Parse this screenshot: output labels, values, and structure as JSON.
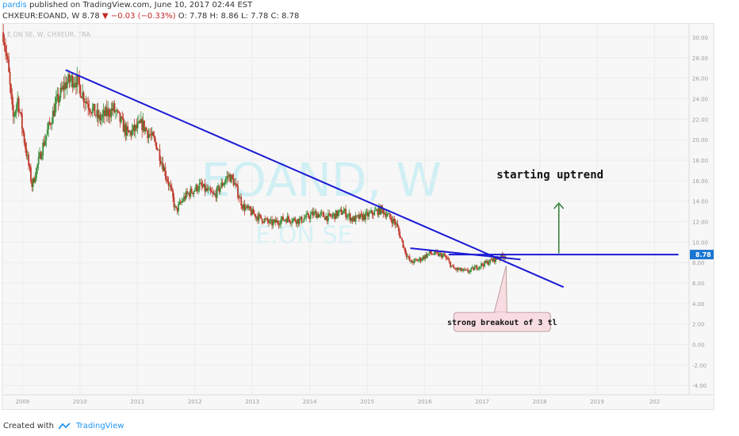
{
  "header": {
    "user": "pardis",
    "published_text": "published on TradingView.com, June 10, 2017 02:44 EST",
    "symbol": "CHXEUR:EOAND, W",
    "last": "8.78",
    "change": "−0.03 (−0.33%)",
    "ohlc": "O: 7.78 H: 8.86 L: 7.78 C: 8.78"
  },
  "footer": {
    "created_with": "Created with",
    "brand": "TradingView"
  },
  "chart_data": {
    "type": "candlestick",
    "watermark": "EOAND, W",
    "watermark_sub": "E.ON SE",
    "legend_line": "E.ON SE, W, CHXEUR, TRA",
    "x_ticks": [
      "2009",
      "2010",
      "2011",
      "2012",
      "2013",
      "2014",
      "2015",
      "2016",
      "2017",
      "2018",
      "2019",
      "202"
    ],
    "y_ticks": [
      "30.00",
      "28.00",
      "26.00",
      "24.00",
      "22.00",
      "20.00",
      "18.00",
      "16.00",
      "14.00",
      "12.00",
      "10.00",
      "8.00",
      "6.00",
      "4.00",
      "2.00",
      "0.00",
      "-2.00",
      "-4.00"
    ],
    "ylim": [
      -4.6,
      31
    ],
    "last_price_label": "8.78",
    "price_path": [
      [
        "2008-09",
        30.5
      ],
      [
        "2008-10",
        27
      ],
      [
        "2008-11",
        22
      ],
      [
        "2008-12",
        24
      ],
      [
        "2009-01",
        21
      ],
      [
        "2009-03",
        15.5
      ],
      [
        "2009-05",
        19
      ],
      [
        "2009-08",
        23.5
      ],
      [
        "2009-10",
        25.5
      ],
      [
        "2009-12",
        26
      ],
      [
        "2010-02",
        24
      ],
      [
        "2010-05",
        22
      ],
      [
        "2010-08",
        23
      ],
      [
        "2010-11",
        20.5
      ],
      [
        "2011-02",
        21.5
      ],
      [
        "2011-05",
        19.5
      ],
      [
        "2011-08",
        15
      ],
      [
        "2011-09",
        13
      ],
      [
        "2011-11",
        14.5
      ],
      [
        "2012-02",
        15.5
      ],
      [
        "2012-05",
        14.5
      ],
      [
        "2012-08",
        16.5
      ],
      [
        "2012-09",
        16
      ],
      [
        "2012-11",
        13.5
      ],
      [
        "2013-02",
        12.5
      ],
      [
        "2013-05",
        11.8
      ],
      [
        "2013-08",
        12.3
      ],
      [
        "2013-11",
        12.1
      ],
      [
        "2014-02",
        12.8
      ],
      [
        "2014-05",
        12.4
      ],
      [
        "2014-08",
        13
      ],
      [
        "2014-10",
        12.2
      ],
      [
        "2015-01",
        12.6
      ],
      [
        "2015-04",
        13.2
      ],
      [
        "2015-07",
        11.8
      ],
      [
        "2015-09",
        9
      ],
      [
        "2015-10",
        8
      ],
      [
        "2015-12",
        8.3
      ],
      [
        "2016-02",
        8.9
      ],
      [
        "2016-05",
        8.7
      ],
      [
        "2016-07",
        7.4
      ],
      [
        "2016-10",
        7.1
      ],
      [
        "2016-12",
        7.6
      ],
      [
        "2017-03",
        8.2
      ],
      [
        "2017-06",
        8.78
      ]
    ],
    "trendlines": [
      {
        "from": [
          "2009-10",
          26.8
        ],
        "to": [
          "2018-06",
          5.6
        ]
      },
      {
        "from": [
          "2015-10",
          9.4
        ],
        "to": [
          "2017-09",
          8.3
        ]
      },
      {
        "from": [
          "2016-06",
          8.78
        ],
        "to": [
          "2020-06",
          8.78
        ]
      }
    ],
    "arrow": {
      "x": "2018-05",
      "from": 8.9,
      "to": 13.8
    },
    "annotations": [
      {
        "text": "starting uptrend",
        "x": "2017-04",
        "y": 16.2
      },
      {
        "text": "strong breakout of 3 tl",
        "x": "2017-05",
        "y": 2.2,
        "pointer_x": "2017-06",
        "pointer_y": 7.7
      }
    ]
  }
}
